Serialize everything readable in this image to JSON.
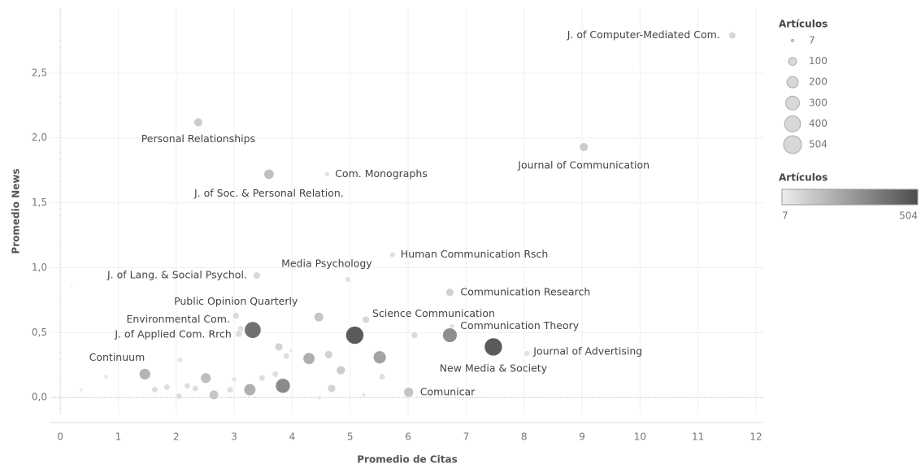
{
  "chart_data": {
    "type": "scatter",
    "xlabel": "Promedio de Citas",
    "ylabel": "Promedio News",
    "xlim": [
      -0.17,
      12.14
    ],
    "ylim": [
      -0.13,
      3.0
    ],
    "xticks": [
      0,
      1,
      2,
      3,
      4,
      5,
      6,
      7,
      8,
      9,
      10,
      11,
      12
    ],
    "yticks": [
      {
        "value": 0,
        "label": "0,0"
      },
      {
        "value": 0.5,
        "label": "0,5"
      },
      {
        "value": 1,
        "label": "1,0"
      },
      {
        "value": 1.5,
        "label": "1,5"
      },
      {
        "value": 2,
        "label": "2,0"
      },
      {
        "value": 2.5,
        "label": "2,5"
      }
    ],
    "grid": true,
    "x": [
      11.59,
      2.38,
      9.03,
      3.6,
      4.6,
      5.73,
      4.96,
      3.39,
      6.72,
      3.03,
      3.11,
      3.08,
      5.27,
      6.76,
      8.05,
      7.47,
      1.46,
      6.01,
      3.32,
      6.72,
      5.08,
      5.51,
      4.29,
      3.84,
      3.27,
      2.51,
      4.46,
      4.84,
      4.63,
      3.77,
      6.11,
      5.55,
      2.65,
      4.68,
      3.9,
      3.48,
      3.71,
      0.2,
      0.36,
      0.79,
      1.18,
      1.63,
      1.84,
      2.05,
      2.07,
      2.19,
      2.33,
      3.0,
      2.93,
      5.23,
      4.47,
      3.98,
      0.69
    ],
    "y": [
      2.79,
      2.12,
      1.93,
      1.72,
      1.72,
      1.1,
      0.91,
      0.94,
      0.81,
      0.63,
      0.53,
      0.49,
      0.6,
      0.55,
      0.34,
      0.39,
      0.18,
      0.04,
      0.52,
      0.48,
      0.48,
      0.31,
      0.3,
      0.09,
      0.06,
      0.15,
      0.62,
      0.21,
      0.33,
      0.39,
      0.48,
      0.16,
      0.02,
      0.07,
      0.32,
      0.15,
      0.18,
      0.86,
      0.06,
      0.16,
      0.0,
      0.06,
      0.08,
      0.01,
      0.29,
      0.09,
      0.07,
      0.14,
      0.06,
      0.02,
      0.0,
      0.36,
      0.0
    ],
    "sizes": [
      80,
      120,
      120,
      160,
      40,
      50,
      50,
      80,
      100,
      70,
      60,
      70,
      80,
      40,
      50,
      504,
      200,
      150,
      430,
      330,
      504,
      260,
      220,
      340,
      220,
      170,
      140,
      120,
      100,
      100,
      70,
      60,
      140,
      100,
      60,
      60,
      60,
      7,
      20,
      30,
      15,
      60,
      60,
      60,
      40,
      60,
      60,
      40,
      60,
      30,
      30,
      20,
      10
    ],
    "labels": [
      "J. of Computer-Mediated Com.",
      "Personal Relationships",
      "Journal of Communication",
      "J. of Soc. & Personal Relation.",
      "Com. Monographs",
      "Human Communication Rsch",
      "Media Psychology",
      "J. of Lang. & Social Psychol.",
      "Communication Research",
      "Public Opinion Quarterly",
      "Environmental Com.",
      "J. of Applied Com. Rrch",
      "Science Communication",
      "Communication Theory",
      "Journal of Advertising",
      "New Media & Society",
      "Continuum",
      "Comunicar",
      null,
      null,
      null,
      null,
      null,
      null,
      null,
      null,
      null,
      null,
      null,
      null,
      null,
      null,
      null,
      null,
      null,
      null,
      null,
      null,
      null,
      null,
      null,
      null,
      null,
      null,
      null,
      null,
      null,
      null,
      null,
      null,
      null,
      null,
      null
    ],
    "size_legend": {
      "title": "Artículos",
      "values": [
        7,
        100,
        200,
        300,
        400,
        504
      ]
    },
    "color_legend": {
      "title": "Artículos",
      "range": [
        7,
        504
      ],
      "colors": [
        "#ececec",
        "#4d4d4d"
      ]
    }
  }
}
